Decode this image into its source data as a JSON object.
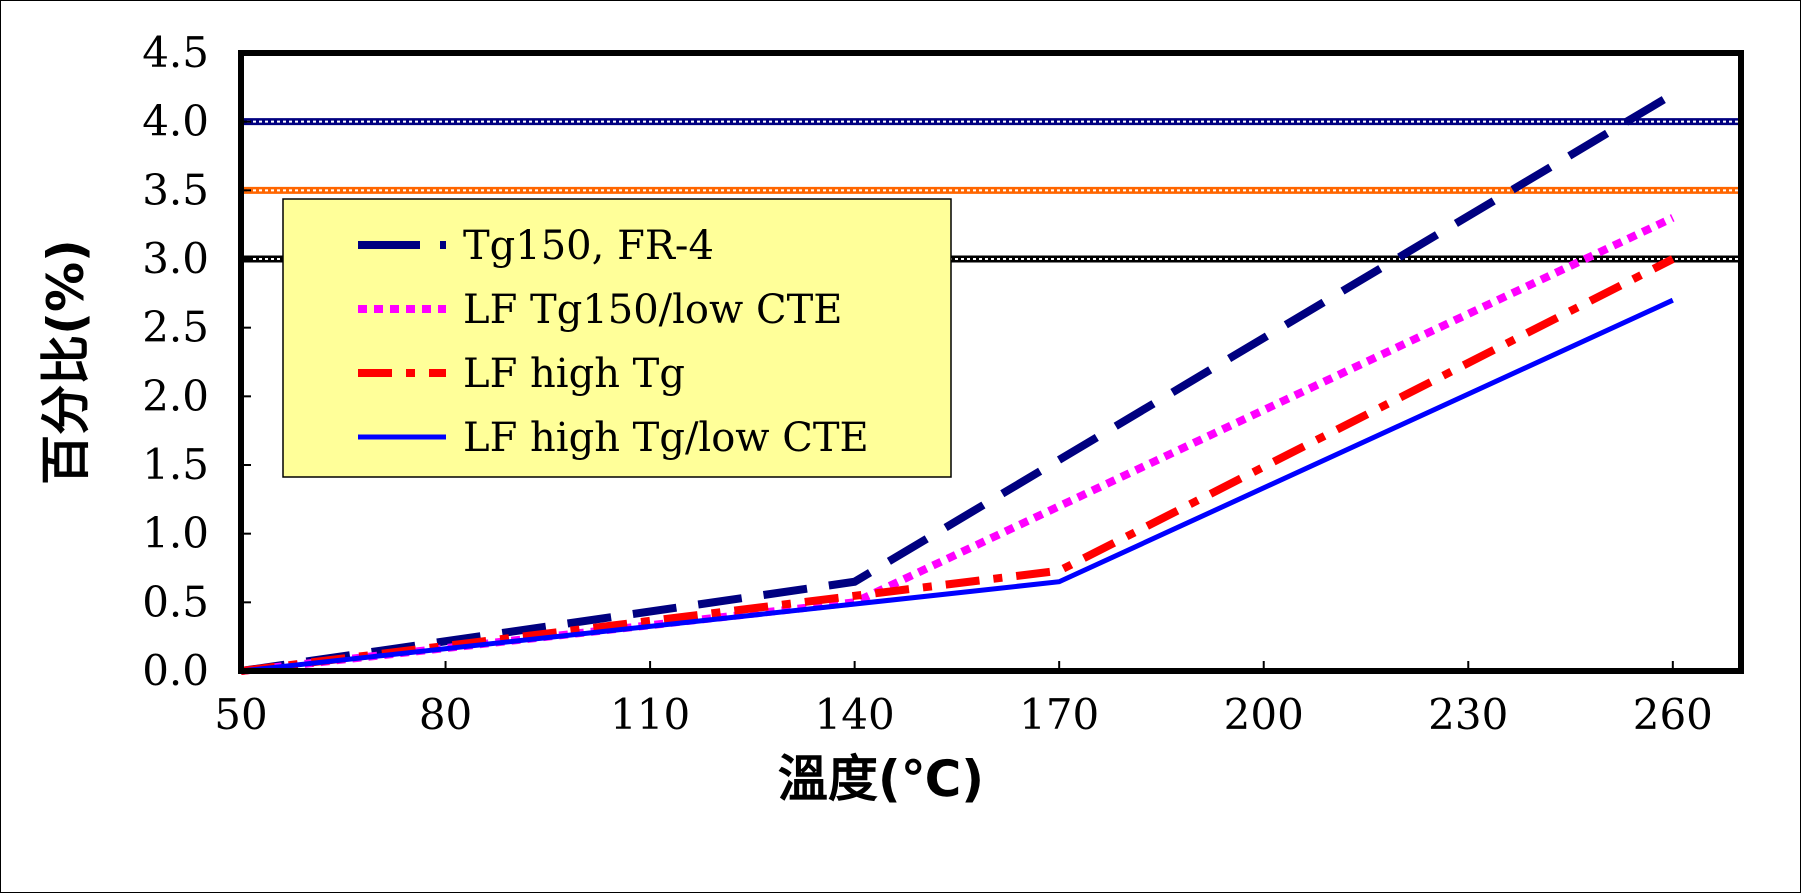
{
  "chart_data": {
    "type": "line",
    "xlabel": "溫度(℃)",
    "ylabel": "百分比(%)",
    "xlim": [
      50,
      270
    ],
    "ylim": [
      0,
      4.5
    ],
    "x_ticks": [
      "50",
      "80",
      "110",
      "140",
      "170",
      "200",
      "230",
      "260"
    ],
    "y_ticks": [
      "0.0",
      "0.5",
      "1.0",
      "1.5",
      "2.0",
      "2.5",
      "3.0",
      "3.5",
      "4.0",
      "4.5"
    ],
    "grid": false,
    "legend_position": "top-left",
    "series": [
      {
        "name": "Tg150, FR-4",
        "color": "#000080",
        "style": "long-dash",
        "x": [
          50,
          140,
          260
        ],
        "y": [
          0,
          0.65,
          4.2
        ]
      },
      {
        "name": "LF Tg150/low CTE",
        "color": "#ff00ff",
        "style": "dotted",
        "x": [
          50,
          140,
          260
        ],
        "y": [
          0,
          0.5,
          3.3
        ]
      },
      {
        "name": "LF high Tg",
        "color": "#ff0000",
        "style": "dash-dot",
        "x": [
          50,
          170,
          260
        ],
        "y": [
          0,
          0.73,
          3.0
        ]
      },
      {
        "name": "LF high Tg/low CTE",
        "color": "#0000ff",
        "style": "solid",
        "x": [
          50,
          170,
          260
        ],
        "y": [
          0,
          0.65,
          2.7
        ]
      }
    ],
    "reference_lines": [
      {
        "y": 4.0,
        "color": "#000080"
      },
      {
        "y": 3.5,
        "color": "#ff6600"
      },
      {
        "y": 3.0,
        "color": "#000000"
      }
    ]
  }
}
